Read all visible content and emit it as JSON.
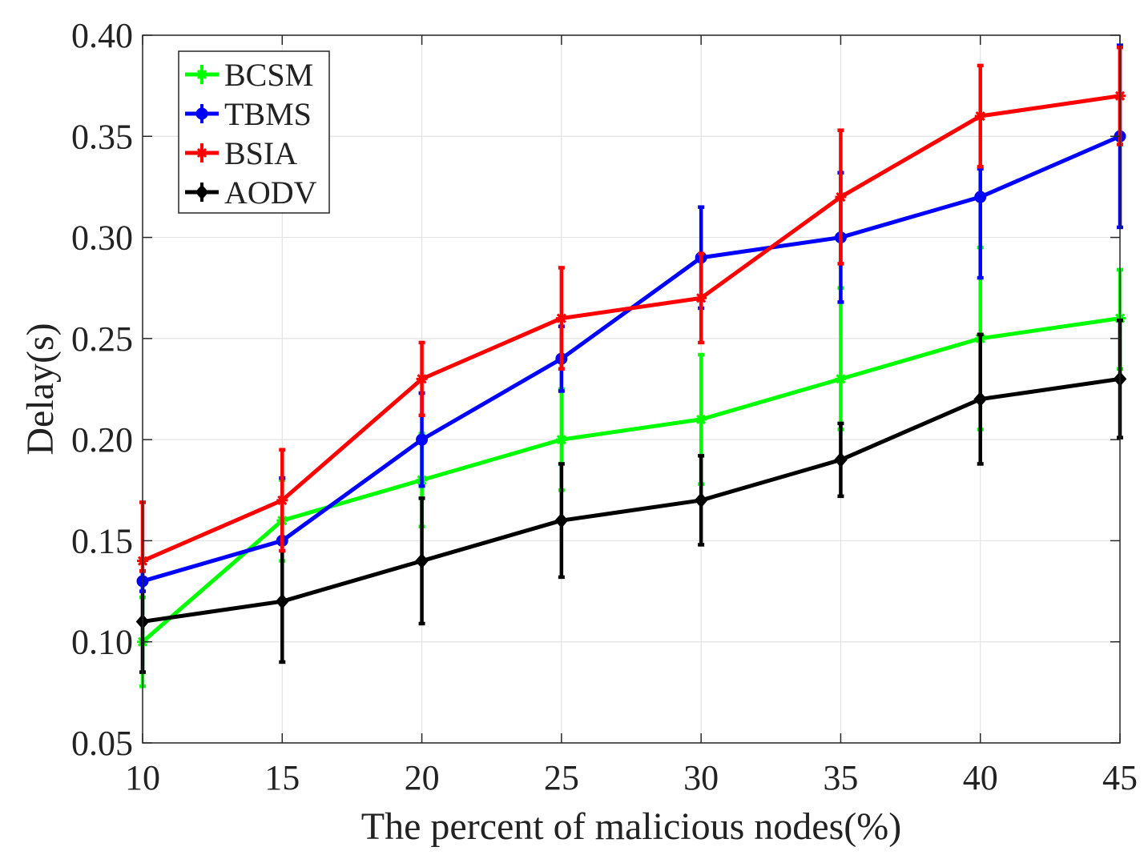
{
  "chart_data": {
    "type": "line",
    "title": "",
    "xlabel": "The percent of malicious nodes(%)",
    "ylabel": "Delay(s)",
    "x": [
      10,
      15,
      20,
      25,
      30,
      35,
      40,
      45
    ],
    "xlim": [
      10,
      45
    ],
    "ylim": [
      0.05,
      0.4
    ],
    "xticks": [
      "10",
      "15",
      "20",
      "25",
      "30",
      "35",
      "40",
      "45"
    ],
    "yticks": [
      "0.05",
      "0.10",
      "0.15",
      "0.20",
      "0.25",
      "0.30",
      "0.35",
      "0.40"
    ],
    "grid": true,
    "legend_position": "top-left",
    "series": [
      {
        "name": "BCSM",
        "color": "#00ff00",
        "marker": "asterisk",
        "values": [
          0.1,
          0.16,
          0.18,
          0.2,
          0.21,
          0.23,
          0.25,
          0.26
        ],
        "err_low": [
          0.022,
          0.02,
          0.023,
          0.025,
          0.032,
          0.025,
          0.045,
          0.025
        ],
        "err_high": [
          0.022,
          0.02,
          0.023,
          0.025,
          0.032,
          0.045,
          0.045,
          0.024
        ]
      },
      {
        "name": "TBMS",
        "color": "#0000ff",
        "marker": "circle",
        "values": [
          0.13,
          0.15,
          0.2,
          0.24,
          0.29,
          0.3,
          0.32,
          0.35
        ],
        "err_low": [
          0.005,
          0.005,
          0.023,
          0.016,
          0.025,
          0.032,
          0.04,
          0.045
        ],
        "err_high": [
          0.005,
          0.031,
          0.023,
          0.016,
          0.025,
          0.032,
          0.014,
          0.045
        ]
      },
      {
        "name": "BSIA",
        "color": "#ff0000",
        "marker": "asterisk",
        "values": [
          0.14,
          0.17,
          0.23,
          0.26,
          0.27,
          0.32,
          0.36,
          0.37
        ],
        "err_low": [
          0.005,
          0.025,
          0.018,
          0.025,
          0.022,
          0.033,
          0.025,
          0.024
        ],
        "err_high": [
          0.029,
          0.025,
          0.018,
          0.025,
          0.022,
          0.033,
          0.025,
          0.024
        ]
      },
      {
        "name": "AODV",
        "color": "#000000",
        "marker": "diamond",
        "values": [
          0.11,
          0.12,
          0.14,
          0.16,
          0.17,
          0.19,
          0.22,
          0.23
        ],
        "err_low": [
          0.025,
          0.03,
          0.031,
          0.028,
          0.022,
          0.018,
          0.032,
          0.029
        ],
        "err_high": [
          0.025,
          0.03,
          0.031,
          0.028,
          0.022,
          0.018,
          0.032,
          0.029
        ]
      }
    ]
  }
}
